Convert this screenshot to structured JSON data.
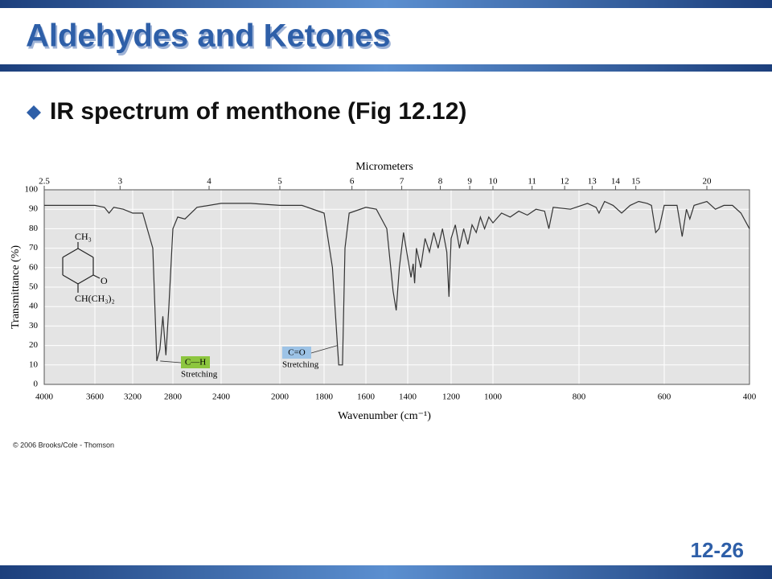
{
  "slide": {
    "title": "Aldehydes and Ketones",
    "bullet": "IR spectrum of menthone (Fig 12.12)",
    "copyright": "© 2006 Brooks/Cole - Thomson",
    "page_number": "12-26"
  },
  "chart_data": {
    "type": "line",
    "xlabel": "Wavenumber (cm⁻¹)",
    "ylabel": "Transmittance (%)",
    "top_axis_label": "Micrometers",
    "top_ticks": [
      2.5,
      3,
      4,
      5,
      6,
      7,
      8,
      9,
      10,
      11,
      12,
      13,
      14,
      15,
      20
    ],
    "xlim": [
      4000,
      400
    ],
    "xticks": [
      4000,
      3600,
      3200,
      2800,
      2400,
      2000,
      1800,
      1600,
      1400,
      1200,
      1000,
      800,
      600,
      400
    ],
    "ylim": [
      0,
      100
    ],
    "yticks": [
      0,
      10,
      20,
      30,
      40,
      50,
      60,
      70,
      80,
      90,
      100
    ],
    "grid": true,
    "x": [
      4000,
      3800,
      3600,
      3500,
      3450,
      3400,
      3300,
      3200,
      3100,
      3000,
      2960,
      2930,
      2900,
      2870,
      2840,
      2800,
      2760,
      2700,
      2600,
      2400,
      2200,
      2000,
      1900,
      1800,
      1760,
      1730,
      1712,
      1700,
      1680,
      1600,
      1550,
      1500,
      1470,
      1455,
      1440,
      1420,
      1400,
      1385,
      1375,
      1368,
      1360,
      1340,
      1320,
      1300,
      1280,
      1260,
      1240,
      1220,
      1210,
      1200,
      1180,
      1160,
      1140,
      1120,
      1100,
      1080,
      1060,
      1040,
      1020,
      1000,
      980,
      960,
      940,
      920,
      900,
      880,
      870,
      860,
      820,
      780,
      760,
      753,
      740,
      720,
      700,
      680,
      660,
      640,
      630,
      620,
      612,
      600,
      570,
      558,
      548,
      540,
      530,
      500,
      480,
      460,
      440,
      420,
      400
    ],
    "series": [
      {
        "name": "menthone",
        "color": "#333333",
        "values": [
          92,
          92,
          92,
          91,
          88,
          91,
          90,
          88,
          88,
          70,
          12,
          18,
          35,
          15,
          40,
          80,
          86,
          85,
          91,
          93,
          93,
          92,
          92,
          88,
          60,
          10,
          10,
          70,
          88,
          91,
          90,
          80,
          48,
          38,
          60,
          78,
          65,
          55,
          62,
          52,
          70,
          60,
          75,
          68,
          78,
          70,
          80,
          68,
          45,
          75,
          82,
          70,
          80,
          72,
          82,
          78,
          86,
          80,
          86,
          83,
          88,
          86,
          89,
          87,
          90,
          89,
          80,
          91,
          90,
          93,
          91,
          88,
          94,
          92,
          88,
          92,
          94,
          93,
          92,
          78,
          80,
          92,
          92,
          76,
          90,
          85,
          92,
          94,
          90,
          92,
          92,
          88,
          80
        ]
      }
    ],
    "annotations": [
      {
        "text": "C—H",
        "sub": "Stretching"
      },
      {
        "text": "C=O",
        "sub": "Stretching"
      }
    ],
    "structure": {
      "top": "CH₃",
      "right": "O",
      "bottom": "CH(CH₃)₂"
    }
  }
}
